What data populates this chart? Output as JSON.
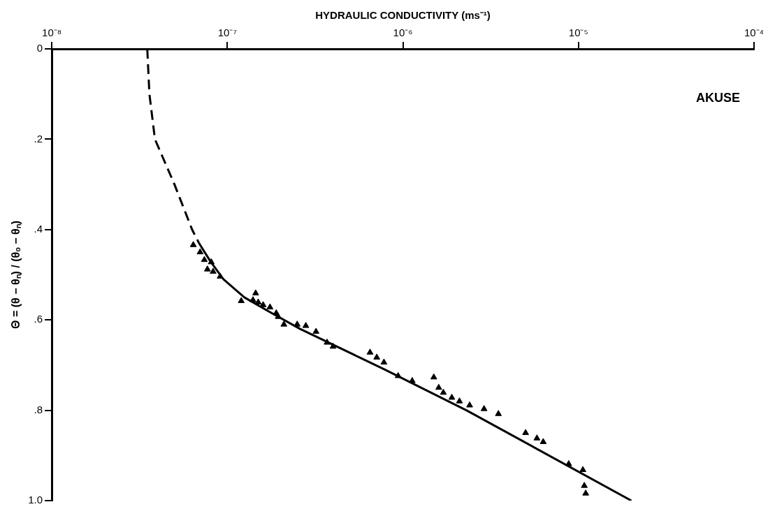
{
  "chart_data": {
    "type": "scatter",
    "xlabel": "HYDRAULIC CONDUCTIVITY (ms⁻¹)",
    "ylabel": "Θ = (θ − θₙ) / (θₒ − θₙ)",
    "annotations": [
      "AKUSE"
    ],
    "log": "x",
    "xlim": [
      1e-08,
      0.0001
    ],
    "xticks": [
      {
        "value": 1e-08,
        "label": "10⁻⁸"
      },
      {
        "value": 1e-07,
        "label": "10⁻⁷"
      },
      {
        "value": 1e-06,
        "label": "10⁻⁶"
      },
      {
        "value": 1e-05,
        "label": "10⁻⁵"
      },
      {
        "value": 0.0001,
        "label": "10⁻⁴"
      }
    ],
    "ylim": [
      1.0,
      0
    ],
    "yticks": [
      0,
      {
        "value": 0.2,
        "label": ".2"
      },
      {
        "value": 0.4,
        "label": ".4"
      },
      {
        "value": 0.6,
        "label": ".6"
      },
      {
        "value": 0.8,
        "label": ".8"
      },
      {
        "value": 1.0,
        "label": "1.0"
      }
    ],
    "grid": false,
    "legend": false,
    "series": [
      {
        "color": "#000000",
        "marker": "triangle",
        "x": [
          6.4e-08,
          7e-08,
          7.4e-08,
          8.1e-08,
          7.7e-08,
          8.3e-08,
          9.1e-08,
          1.2e-07,
          1.4e-07,
          1.45e-07,
          1.5e-07,
          1.6e-07,
          1.75e-07,
          1.9e-07,
          1.95e-07,
          2.1e-07,
          2.5e-07,
          2.8e-07,
          3.2e-07,
          3.7e-07,
          4e-07,
          6.5e-07,
          7.1e-07,
          7.8e-07,
          9.4e-07,
          1.13e-06,
          1.5e-06,
          1.6e-06,
          1.7e-06,
          1.9e-06,
          2.1e-06,
          2.4e-06,
          2.9e-06,
          3.5e-06,
          5e-06,
          5.8e-06,
          6.3e-06,
          8.8e-06,
          1.06e-05,
          1.08e-05,
          1.1e-05
        ],
        "values": [
          0.434,
          0.45,
          0.467,
          0.472,
          0.488,
          0.493,
          0.504,
          0.558,
          0.556,
          0.541,
          0.561,
          0.567,
          0.572,
          0.585,
          0.593,
          0.61,
          0.61,
          0.613,
          0.626,
          0.65,
          0.659,
          0.672,
          0.683,
          0.694,
          0.724,
          0.735,
          0.727,
          0.75,
          0.761,
          0.772,
          0.78,
          0.789,
          0.797,
          0.808,
          0.85,
          0.862,
          0.87,
          0.919,
          0.932,
          0.967,
          0.984
        ]
      },
      {
        "type": "line",
        "color": "#000000",
        "line_style": "dashed",
        "marker": "none",
        "x": [
          3.5e-08,
          3.6e-08,
          3.87e-08,
          5e-08,
          6.3e-08,
          6.9e-08
        ],
        "values": [
          0,
          0.1,
          0.2,
          0.3,
          0.4,
          0.43
        ]
      },
      {
        "type": "line",
        "color": "#000000",
        "line_style": "solid",
        "marker": "none",
        "x": [
          6.9e-08,
          8e-08,
          9.5e-08,
          1.25e-07,
          1.7e-07,
          2.6e-07,
          7.9e-07,
          2.3e-06,
          2e-05
        ],
        "values": [
          0.43,
          0.47,
          0.51,
          0.55,
          0.58,
          0.62,
          0.71,
          0.8,
          1.0
        ]
      }
    ]
  }
}
